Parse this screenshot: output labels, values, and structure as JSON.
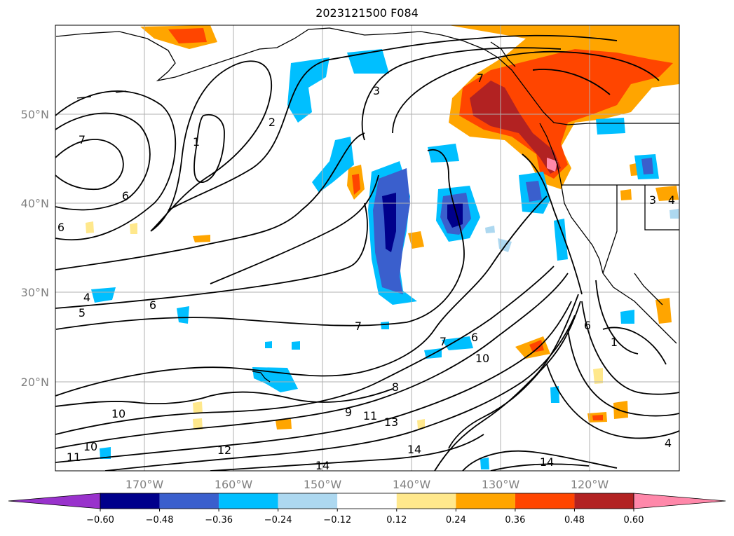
{
  "title": "2023121500 F084",
  "lat_labels": [
    "50°N",
    "40°N",
    "30°N",
    "20°N"
  ],
  "lon_labels": [
    "170°W",
    "160°W",
    "150°W",
    "140°W",
    "130°W",
    "120°W"
  ],
  "colorbar": {
    "ticks": [
      "−0.60",
      "−0.48",
      "−0.36",
      "−0.24",
      "−0.12",
      "0.12",
      "0.24",
      "0.36",
      "0.48",
      "0.60"
    ],
    "colors": [
      "#9932cc",
      "#00008b",
      "#3a5fcd",
      "#00bfff",
      "#add8f0",
      "#ffffff",
      "#ffe88c",
      "#ffa500",
      "#ff4500",
      "#b22222",
      "#ff88aa"
    ]
  },
  "contour_labels": [
    {
      "text": "3"
    },
    {
      "text": "2"
    },
    {
      "text": "1"
    },
    {
      "text": "7"
    },
    {
      "text": "6"
    },
    {
      "text": "6"
    },
    {
      "text": "4"
    },
    {
      "text": "5"
    },
    {
      "text": "6"
    },
    {
      "text": "7"
    },
    {
      "text": "10"
    },
    {
      "text": "10"
    },
    {
      "text": "11"
    },
    {
      "text": "12"
    },
    {
      "text": "14"
    },
    {
      "text": "9"
    },
    {
      "text": "11"
    },
    {
      "text": "13"
    },
    {
      "text": "8"
    },
    {
      "text": "14"
    },
    {
      "text": "14"
    },
    {
      "text": "10"
    },
    {
      "text": "6"
    },
    {
      "text": "7"
    },
    {
      "text": "3"
    },
    {
      "text": "4"
    },
    {
      "text": "1"
    },
    {
      "text": "6"
    },
    {
      "text": "7"
    },
    {
      "text": "4"
    }
  ]
}
